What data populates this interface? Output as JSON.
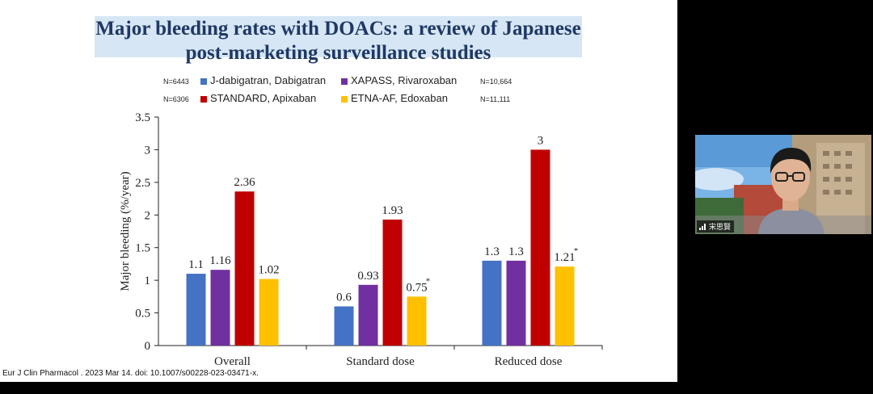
{
  "slide": {
    "title": "Major bleeding rates with DOACs: a review of Japanese post-marketing surveillance studies",
    "citation": "Eur J Clin Pharmacol . 2023 Mar 14. doi: 10.1007/s00228-023-03471-x.",
    "legend": [
      {
        "n": "N=6443",
        "label": "J-dabigatran, Dabigatran",
        "color": "#4472c4"
      },
      {
        "n": "N=10,664",
        "label": "XAPASS, Rivaroxaban",
        "color": "#7030a0"
      },
      {
        "n": "N=6306",
        "label": "STANDARD, Apixaban",
        "color": "#c00000"
      },
      {
        "n": "N=11,111",
        "label": "ETNA-AF, Edoxaban",
        "color": "#ffc000"
      }
    ]
  },
  "chart_data": {
    "type": "bar",
    "categories": [
      "Overall",
      "Standard dose",
      "Reduced dose"
    ],
    "series": [
      {
        "name": "J-dabigatran, Dabigatran",
        "values": [
          1.1,
          0.6,
          1.3
        ],
        "labels": [
          "1.1",
          "0.6",
          "1.3"
        ],
        "color": "#4472c4"
      },
      {
        "name": "XAPASS, Rivaroxaban",
        "values": [
          1.16,
          0.93,
          1.3
        ],
        "labels": [
          "1.16",
          "0.93",
          "1.3"
        ],
        "color": "#7030a0"
      },
      {
        "name": "STANDARD, Apixaban",
        "values": [
          2.36,
          1.93,
          3
        ],
        "labels": [
          "2.36",
          "1.93",
          "3"
        ],
        "color": "#c00000"
      },
      {
        "name": "ETNA-AF, Edoxaban",
        "values": [
          1.02,
          0.75,
          1.21
        ],
        "labels": [
          "1.02",
          "0.75",
          "1.21"
        ],
        "color": "#ffc000"
      }
    ],
    "asterisks": [
      "",
      "*",
      "*"
    ],
    "ylabel": "Major bleeding (%/year)",
    "ylim": [
      0,
      3.5
    ],
    "yticks": [
      "0",
      "0.5",
      "1",
      "1.5",
      "2",
      "2.5",
      "3",
      "3.5"
    ],
    "grid": false,
    "legend_position": "top"
  },
  "webcam": {
    "name_label": "宋思賢"
  }
}
